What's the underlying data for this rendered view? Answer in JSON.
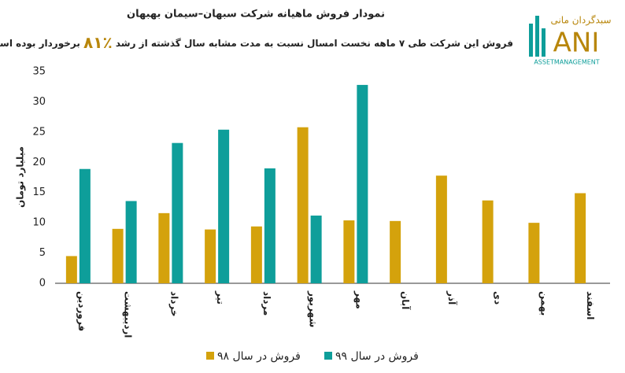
{
  "chart_data": {
    "type": "bar",
    "title": "نمودار فروش ماهیانه شرکت سبهان–سیمان بهبهان",
    "subtitle": [
      "فروش این شرکت طی ۷ ماهه نخست امسال نسبت به مدت مشابه سال گذشته از رشد",
      "٪۸۱",
      "برخوردار بوده است."
    ],
    "y_label": "میلیارد تومان",
    "categories": [
      "فروردین",
      "اردیبهشت",
      "خرداد",
      "تیر",
      "مرداد",
      "شهریور",
      "مهر",
      "آبان",
      "آذر",
      "دی",
      "بهمن",
      "اسفند"
    ],
    "series": [
      {
        "name": "فروش در سال ۹۸",
        "color": "#d4a20c",
        "values": [
          4.5,
          9,
          11.6,
          8.9,
          9.4,
          25.8,
          10.4,
          10.3,
          17.8,
          13.7,
          10,
          14.9
        ]
      },
      {
        "name": "فروش در سال ۹۹",
        "color": "#0e9e9a",
        "values": [
          18.9,
          13.6,
          23.2,
          25.4,
          19,
          11.2,
          32.8,
          null,
          null,
          null,
          null,
          null
        ]
      }
    ],
    "ylim": [
      0,
      35
    ],
    "yticks": [
      0,
      5,
      10,
      15,
      20,
      25,
      30,
      35
    ],
    "grid": false,
    "legend": "bottom"
  },
  "logo": {
    "name": "سبدگردان مانی",
    "mark": "ANI",
    "tagline": "ASSETMANAGEMENT"
  }
}
